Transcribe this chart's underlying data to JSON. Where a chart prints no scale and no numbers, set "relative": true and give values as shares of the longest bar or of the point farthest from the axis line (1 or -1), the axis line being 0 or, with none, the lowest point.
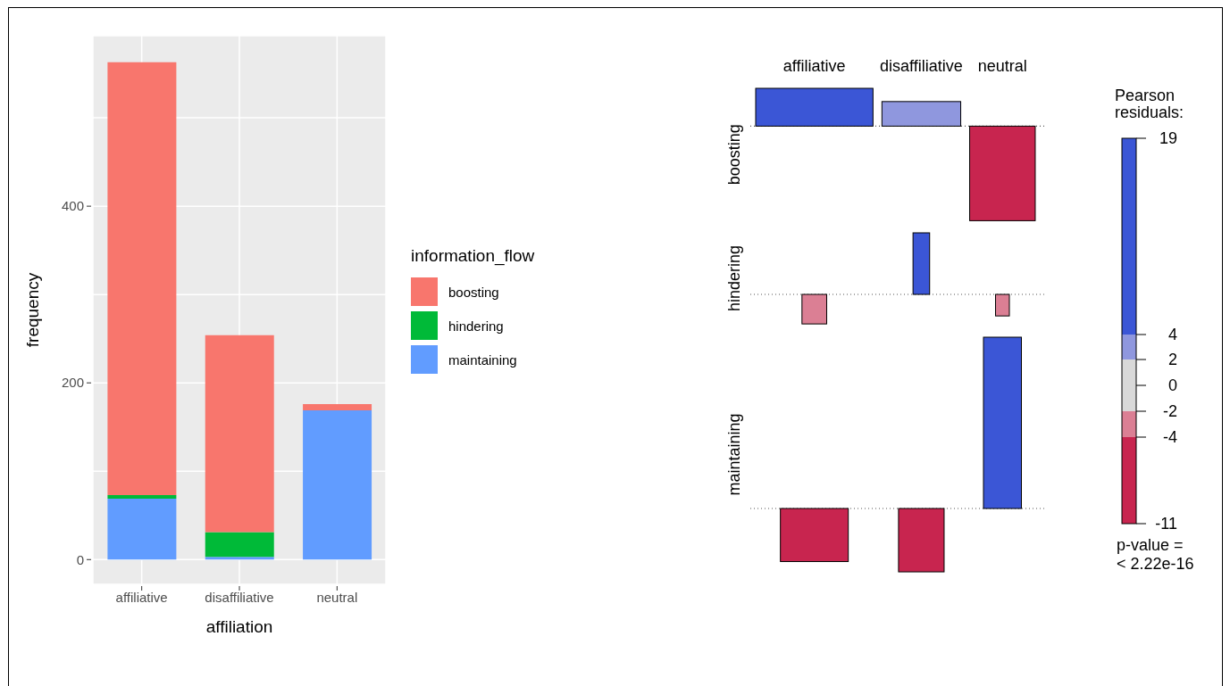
{
  "chart_data": [
    {
      "type": "bar",
      "stacked": true,
      "xlabel": "affiliation",
      "ylabel": "frequency",
      "legend_title": "information_flow",
      "legend": "right",
      "grid": true,
      "categories": [
        "affiliative",
        "disaffiliative",
        "neutral"
      ],
      "series": [
        {
          "name": "maintaining",
          "color": "#619cff",
          "values": [
            69,
            3,
            169
          ]
        },
        {
          "name": "hindering",
          "color": "#00ba38",
          "values": [
            4,
            28,
            0
          ]
        },
        {
          "name": "boosting",
          "color": "#f8766d",
          "values": [
            490,
            223,
            7
          ]
        }
      ],
      "ylim": [
        -28,
        593
      ],
      "yticks": [
        0,
        {
          "value": 100,
          "label": null
        },
        200,
        {
          "value": 300,
          "label": null
        },
        400,
        {
          "value": 500,
          "label": null
        }
      ]
    },
    {
      "type": "bar",
      "relative": true,
      "ylabel": "boosting",
      "tick_labels": "x",
      "categories": [
        "affiliative",
        "disaffiliative",
        "neutral"
      ],
      "values": [
        0.4,
        0.26,
        -1
      ],
      "ref_lines": [
        {
          "axis": "y",
          "value": 0,
          "line_style": "dotted",
          "color": "#555555"
        }
      ],
      "colors": [
        "#3b56d6",
        "#8f97de",
        "#c8254f"
      ]
    },
    {
      "type": "bar",
      "relative": true,
      "ylabel": "hindering",
      "tick_labels": false,
      "categories": [
        null,
        null,
        null
      ],
      "values": [
        -0.48,
        1,
        -0.35
      ],
      "ref_lines": [
        {
          "axis": "y",
          "value": 0,
          "line_style": "dotted",
          "color": "#555555"
        }
      ],
      "colors": [
        "#db7f94",
        "#3b56d6",
        "#db7f94"
      ]
    },
    {
      "type": "bar",
      "relative": true,
      "ylabel": "maintaining",
      "tick_labels": false,
      "categories": [
        null,
        null,
        null
      ],
      "values": [
        -0.31,
        -0.37,
        1
      ],
      "ref_lines": [
        {
          "axis": "y",
          "value": 0,
          "line_style": "dotted",
          "color": "#555555"
        }
      ],
      "colors": [
        "#c8254f",
        "#c8254f",
        "#3b56d6"
      ]
    },
    {
      "type": "other",
      "title": "Pearson\nresiduals:",
      "annotations": [
        "19",
        "4",
        "2",
        "0",
        "-2",
        "-4",
        "-11",
        "p-value =\n< 2.22e-16"
      ]
    }
  ]
}
